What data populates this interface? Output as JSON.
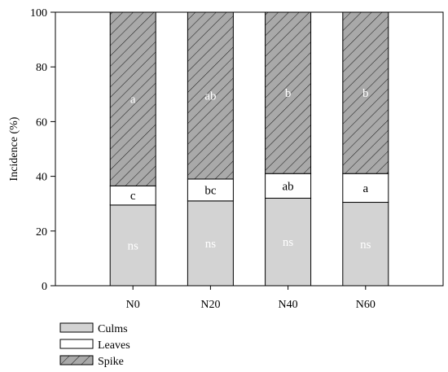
{
  "chart_data": {
    "type": "bar",
    "stacked": true,
    "categories": [
      "N0",
      "N20",
      "N40",
      "N60"
    ],
    "series": [
      {
        "name": "Culms",
        "values": [
          29.5,
          31,
          32,
          30.5
        ],
        "fill": "#d3d3d3",
        "pattern": "solid",
        "labels": [
          "ns",
          "ns",
          "ns",
          "ns"
        ],
        "label_color": "#ffffff"
      },
      {
        "name": "Leaves",
        "values": [
          7,
          8,
          9,
          10.5
        ],
        "fill": "#ffffff",
        "pattern": "solid",
        "labels": [
          "c",
          "bc",
          "ab",
          "a"
        ],
        "label_color": "#000000"
      },
      {
        "name": "Spike",
        "values": [
          63.5,
          61,
          59,
          59
        ],
        "fill": "#a9a9a9",
        "pattern": "diagonal-hatch",
        "labels": [
          "a",
          "ab",
          "b",
          "b"
        ],
        "label_color": "#ffffff"
      }
    ],
    "ylabel": "Incidence (%)",
    "xlabel": "",
    "ylim": [
      0,
      100
    ],
    "yticks": [
      0,
      20,
      40,
      60,
      80,
      100
    ],
    "grid": false,
    "legend_position": "bottom-left"
  }
}
